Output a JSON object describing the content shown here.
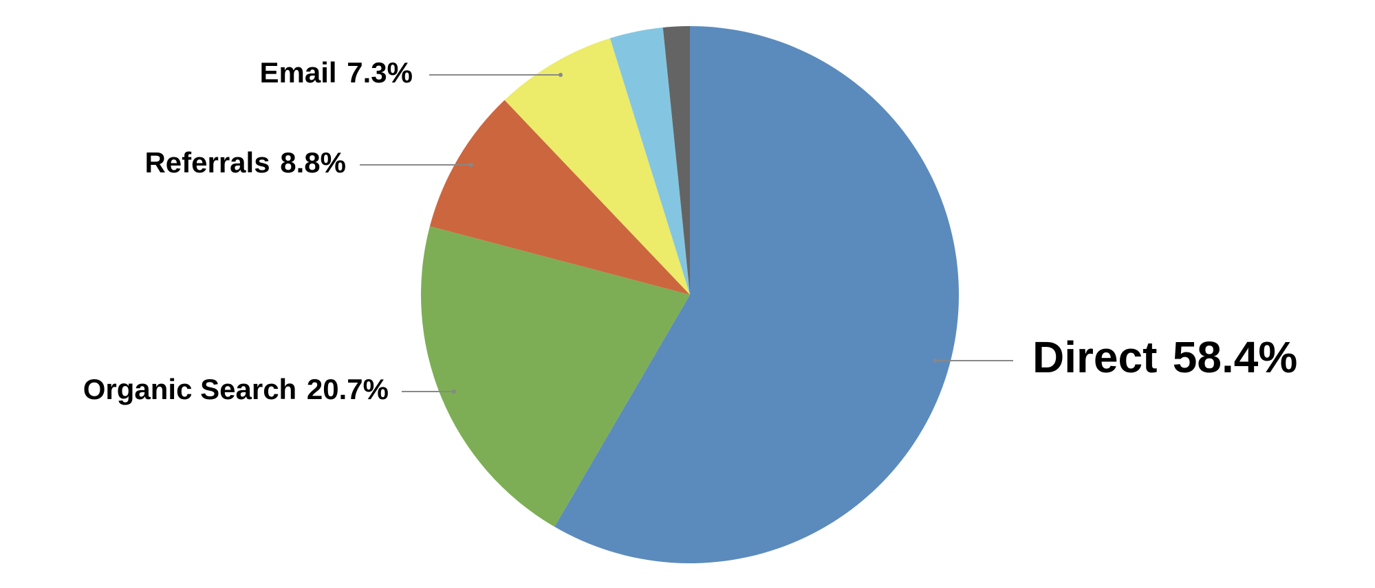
{
  "chart_data": {
    "type": "pie",
    "categories": [
      "Direct",
      "Organic Search",
      "Referrals",
      "Email",
      null,
      null
    ],
    "values": [
      58.4,
      20.7,
      8.8,
      7.3,
      3.2,
      1.6
    ],
    "value_labels": [
      "58.4%",
      "20.7%",
      "8.8%",
      "7.3%",
      null,
      null
    ],
    "colors": [
      "#5b8bbd",
      "#7dae55",
      "#cc663f",
      "#eceb6a",
      "#84c6e1",
      "#646464"
    ]
  }
}
